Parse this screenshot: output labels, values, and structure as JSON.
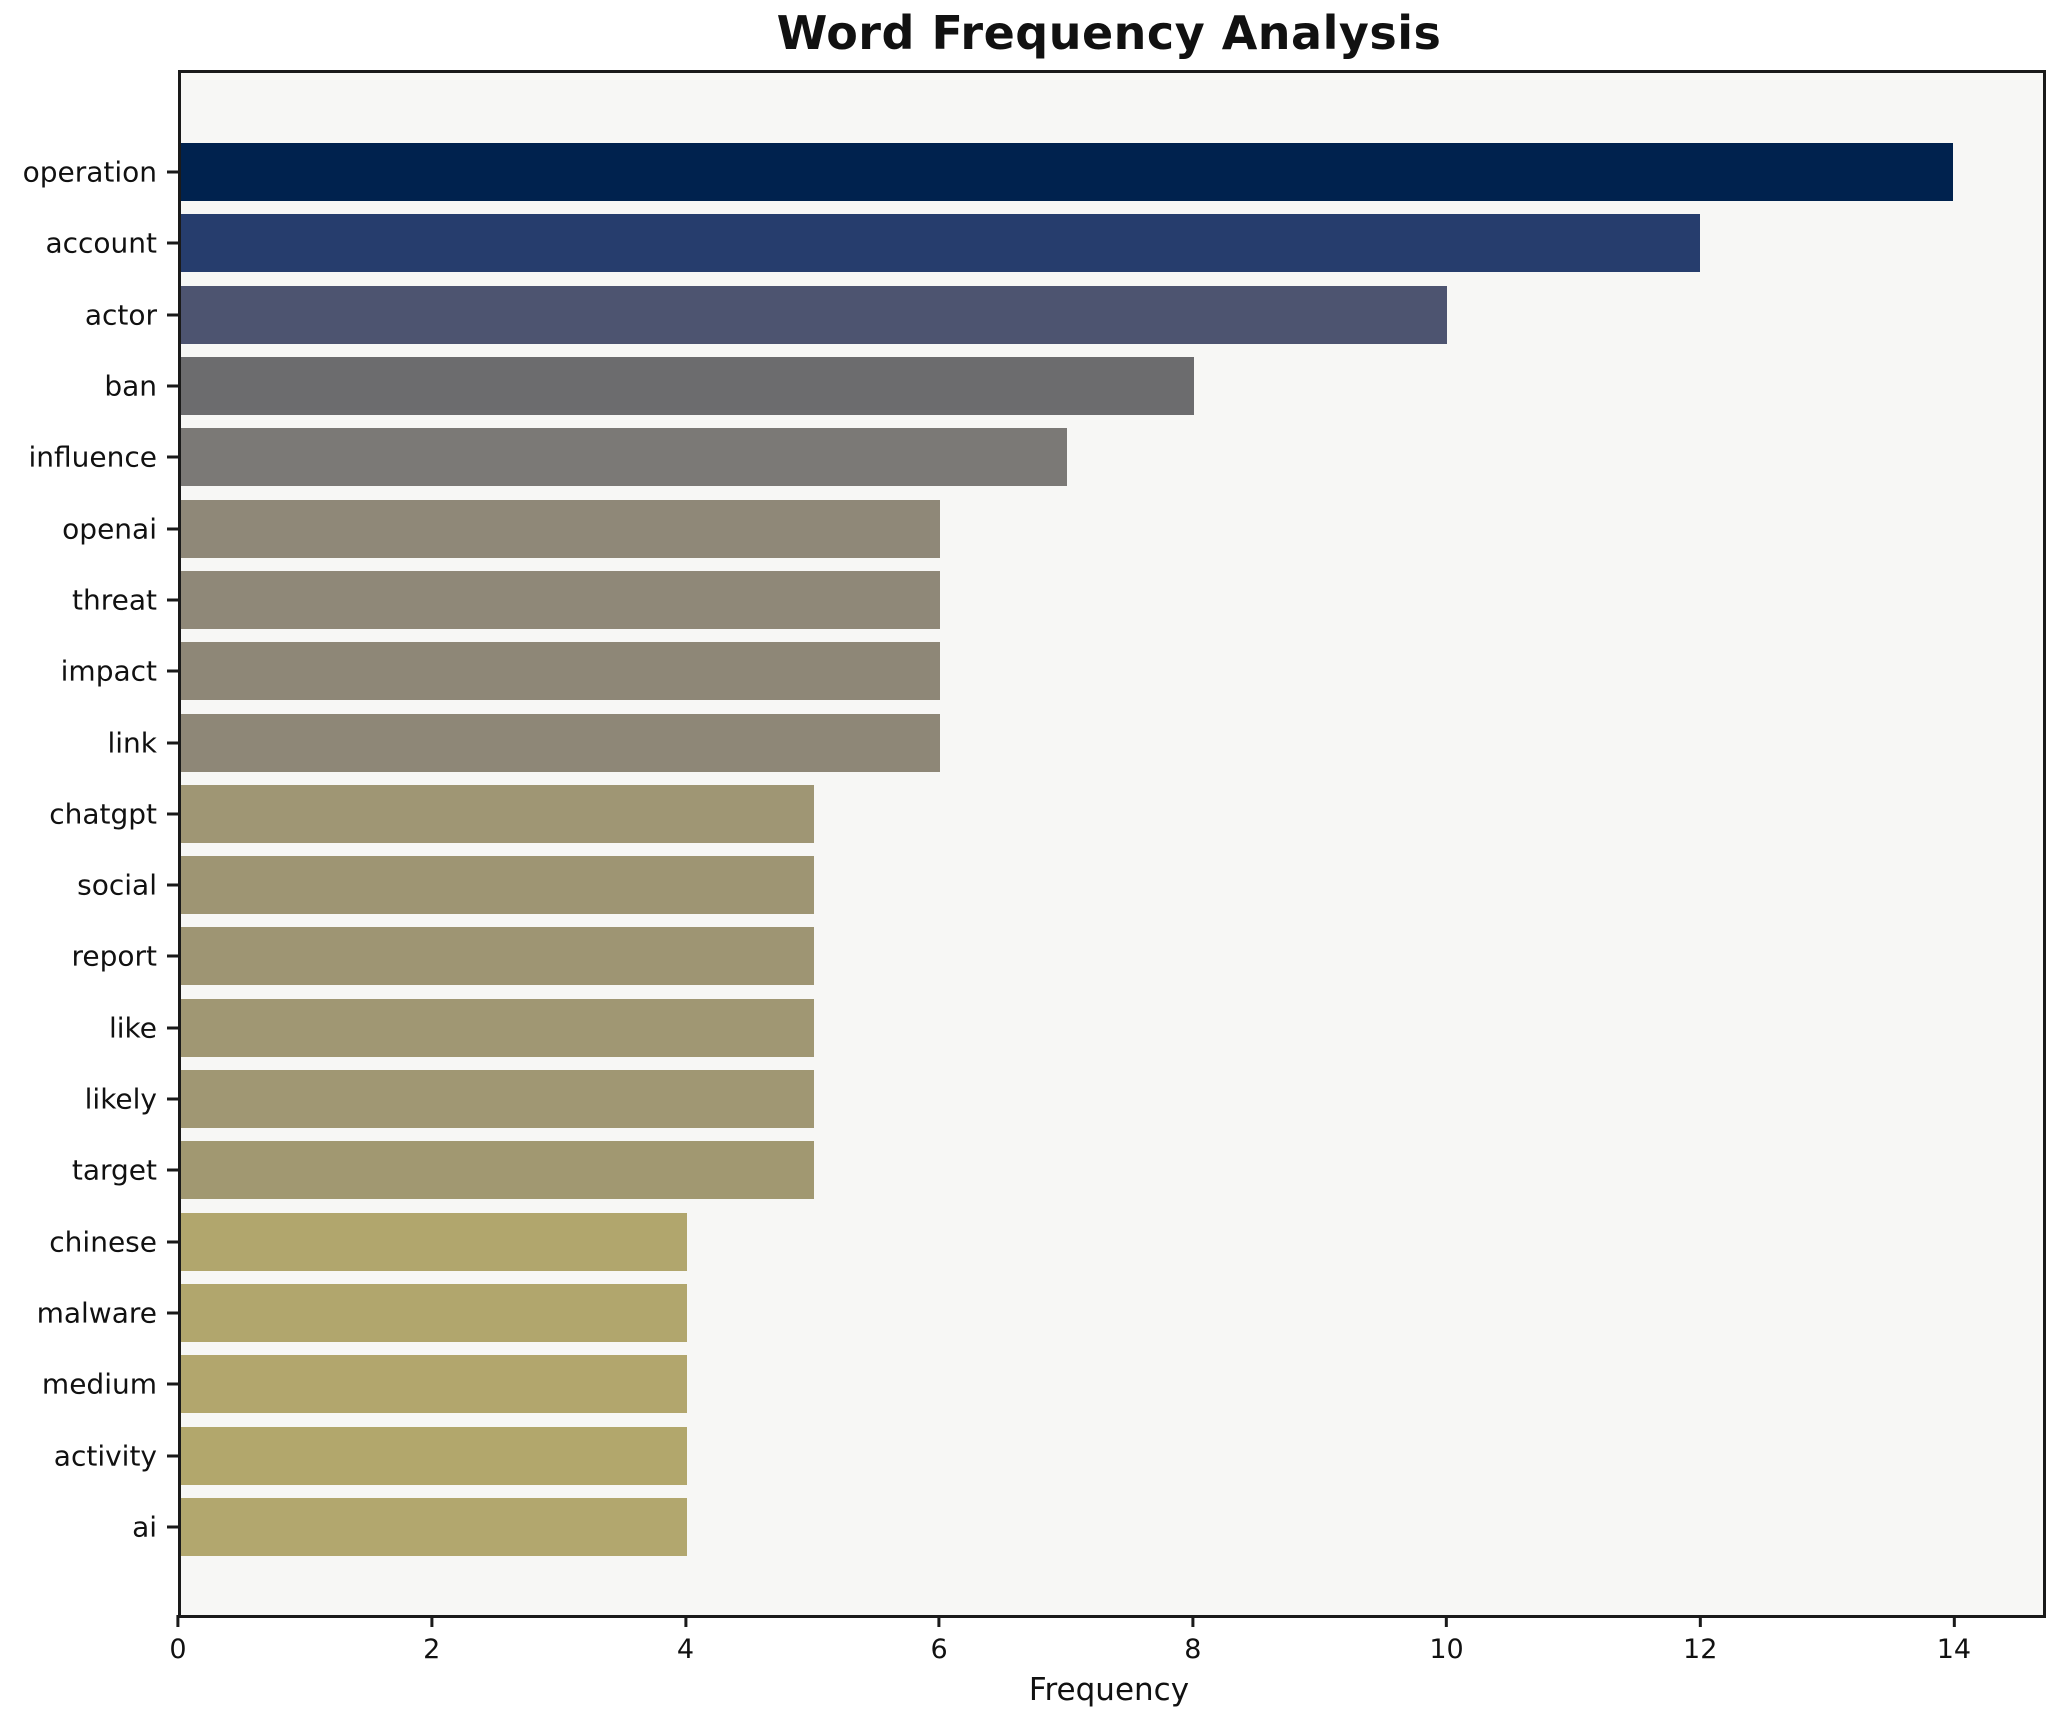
{
  "chart_data": {
    "type": "bar",
    "orientation": "horizontal",
    "title": "Word Frequency Analysis",
    "xlabel": "Frequency",
    "ylabel": "",
    "categories": [
      "operation",
      "account",
      "actor",
      "ban",
      "influence",
      "openai",
      "threat",
      "impact",
      "link",
      "chatgpt",
      "social",
      "report",
      "like",
      "likely",
      "target",
      "chinese",
      "malware",
      "medium",
      "activity",
      "ai"
    ],
    "values": [
      14,
      12,
      10,
      8,
      7,
      6,
      6,
      6,
      6,
      5,
      5,
      5,
      5,
      5,
      5,
      4,
      4,
      4,
      4,
      4
    ],
    "bar_colors": [
      "#00224e",
      "#263d6d",
      "#4d5470",
      "#6c6c6e",
      "#7b7976",
      "#8f8878",
      "#8f8878",
      "#8e8777",
      "#8e8777",
      "#9f9674",
      "#9e9573",
      "#9e9573",
      "#a09773",
      "#a09773",
      "#a19871",
      "#b1a66d",
      "#b1a66d",
      "#b2a66d",
      "#b2a76c",
      "#b2a76e"
    ],
    "xticks": [
      0,
      2,
      4,
      6,
      8,
      10,
      12,
      14
    ],
    "xlim": [
      0,
      14.71
    ],
    "grid": false,
    "legend": false,
    "plot_bg": "#f7f7f5",
    "figure_bg": "#ffffff",
    "spine_color": "#1a1a1a",
    "text_color": "#111111"
  }
}
